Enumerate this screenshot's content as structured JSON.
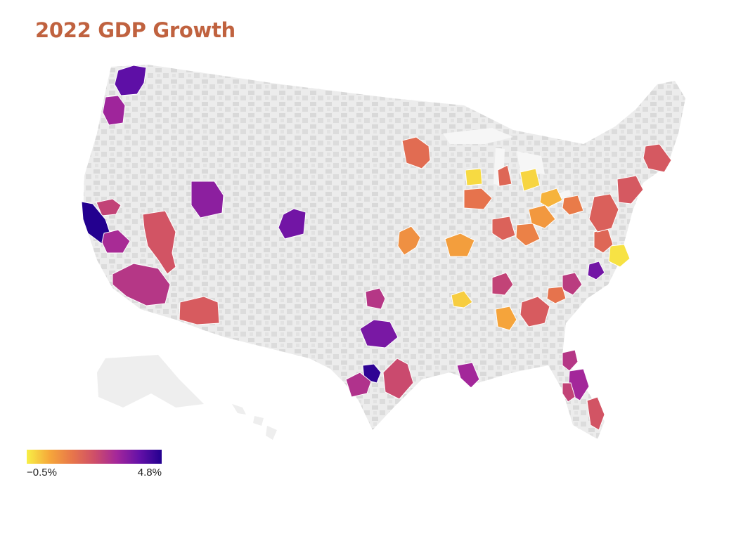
{
  "title": "2022 GDP Growth",
  "colors": {
    "title": "#c0623f",
    "land": "#ececec",
    "county": "#d6d6d6",
    "water": "#e6e6e6",
    "scale": [
      "#f7ef46",
      "#f6a83a",
      "#e8774a",
      "#cf4f68",
      "#a4279a",
      "#6511a8",
      "#23008f"
    ]
  },
  "legend": {
    "min_label": "−0.5%",
    "max_label": "4.8%",
    "min_value": -0.5,
    "max_value": 4.8
  },
  "metro_areas": [
    {
      "id": "seattle",
      "level": 0.85
    },
    {
      "id": "portland",
      "level": 0.68
    },
    {
      "id": "sacramento",
      "level": 0.55
    },
    {
      "id": "san-francisco-bay",
      "level": 1.0
    },
    {
      "id": "fresno",
      "level": 0.65
    },
    {
      "id": "reno",
      "level": 0.48
    },
    {
      "id": "los-angeles",
      "level": 0.6
    },
    {
      "id": "phoenix",
      "level": 0.45
    },
    {
      "id": "boise",
      "level": 0.73
    },
    {
      "id": "salt-lake-city",
      "level": 0.8
    },
    {
      "id": "minneapolis",
      "level": 0.38
    },
    {
      "id": "kansas-city",
      "level": 0.25
    },
    {
      "id": "oklahoma-city",
      "level": 0.6
    },
    {
      "id": "dallas",
      "level": 0.78
    },
    {
      "id": "austin",
      "level": 0.97
    },
    {
      "id": "san-antonio",
      "level": 0.62
    },
    {
      "id": "houston",
      "level": 0.52
    },
    {
      "id": "new-orleans",
      "level": 0.67
    },
    {
      "id": "st-louis",
      "level": 0.2
    },
    {
      "id": "chicago",
      "level": 0.35
    },
    {
      "id": "milwaukee",
      "level": 0.05
    },
    {
      "id": "detroit",
      "level": 0.06
    },
    {
      "id": "grand-rapids",
      "level": 0.4
    },
    {
      "id": "indianapolis",
      "level": 0.42
    },
    {
      "id": "cincinnati",
      "level": 0.3
    },
    {
      "id": "columbus",
      "level": 0.22
    },
    {
      "id": "cleveland",
      "level": 0.14
    },
    {
      "id": "pittsburgh",
      "level": 0.32
    },
    {
      "id": "nashville",
      "level": 0.55
    },
    {
      "id": "memphis",
      "level": 0.08
    },
    {
      "id": "atlanta",
      "level": 0.45
    },
    {
      "id": "birmingham",
      "level": 0.18
    },
    {
      "id": "charlotte",
      "level": 0.58
    },
    {
      "id": "greensboro",
      "level": 0.35
    },
    {
      "id": "raleigh",
      "level": 0.8
    },
    {
      "id": "virginia-beach",
      "level": 0.03
    },
    {
      "id": "washington-dc",
      "level": 0.4
    },
    {
      "id": "philadelphia",
      "level": 0.43
    },
    {
      "id": "new-york",
      "level": 0.46
    },
    {
      "id": "boston",
      "level": 0.46
    },
    {
      "id": "jacksonville",
      "level": 0.6
    },
    {
      "id": "orlando",
      "level": 0.67
    },
    {
      "id": "tampa",
      "level": 0.55
    },
    {
      "id": "miami",
      "level": 0.48
    }
  ]
}
